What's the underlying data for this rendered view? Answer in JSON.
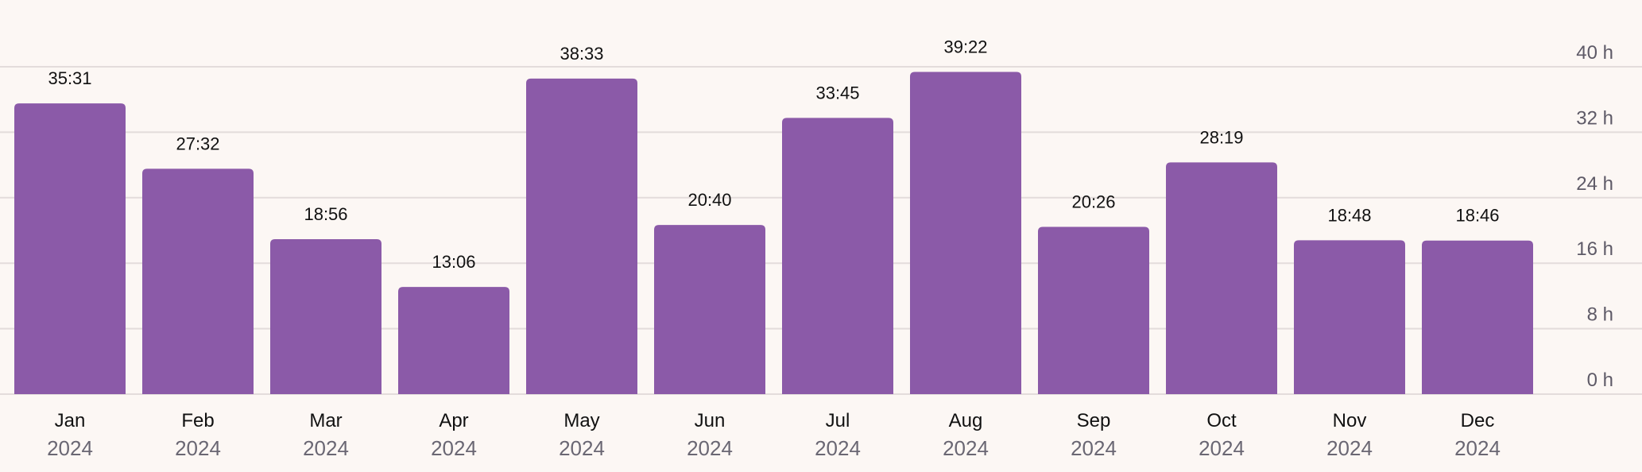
{
  "chart_data": {
    "type": "bar",
    "categories": [
      "Jan",
      "Feb",
      "Mar",
      "Apr",
      "May",
      "Jun",
      "Jul",
      "Aug",
      "Sep",
      "Oct",
      "Nov",
      "Dec"
    ],
    "category_years": [
      "2024",
      "2024",
      "2024",
      "2024",
      "2024",
      "2024",
      "2024",
      "2024",
      "2024",
      "2024",
      "2024",
      "2024"
    ],
    "values": [
      35.5167,
      27.5333,
      18.9333,
      13.1,
      38.55,
      20.6667,
      33.75,
      39.3667,
      20.4333,
      28.3167,
      18.8,
      18.7667
    ],
    "data_labels": [
      "35:31",
      "27:32",
      "18:56",
      "13:06",
      "38:33",
      "20:40",
      "33:45",
      "39:22",
      "20:26",
      "28:19",
      "18:48",
      "18:46"
    ],
    "ylim": [
      0,
      40
    ],
    "y_ticks": [
      0,
      8,
      16,
      24,
      32,
      40
    ],
    "y_tick_labels": [
      "0 h",
      "8 h",
      "16 h",
      "24 h",
      "32 h",
      "40 h"
    ],
    "title": "",
    "xlabel": "",
    "ylabel": "",
    "grid": true,
    "y_axis_position": "right",
    "colors": {
      "bar": "#8b5aa8",
      "background": "#fcf7f4",
      "grid": "#e3dcdb"
    }
  }
}
